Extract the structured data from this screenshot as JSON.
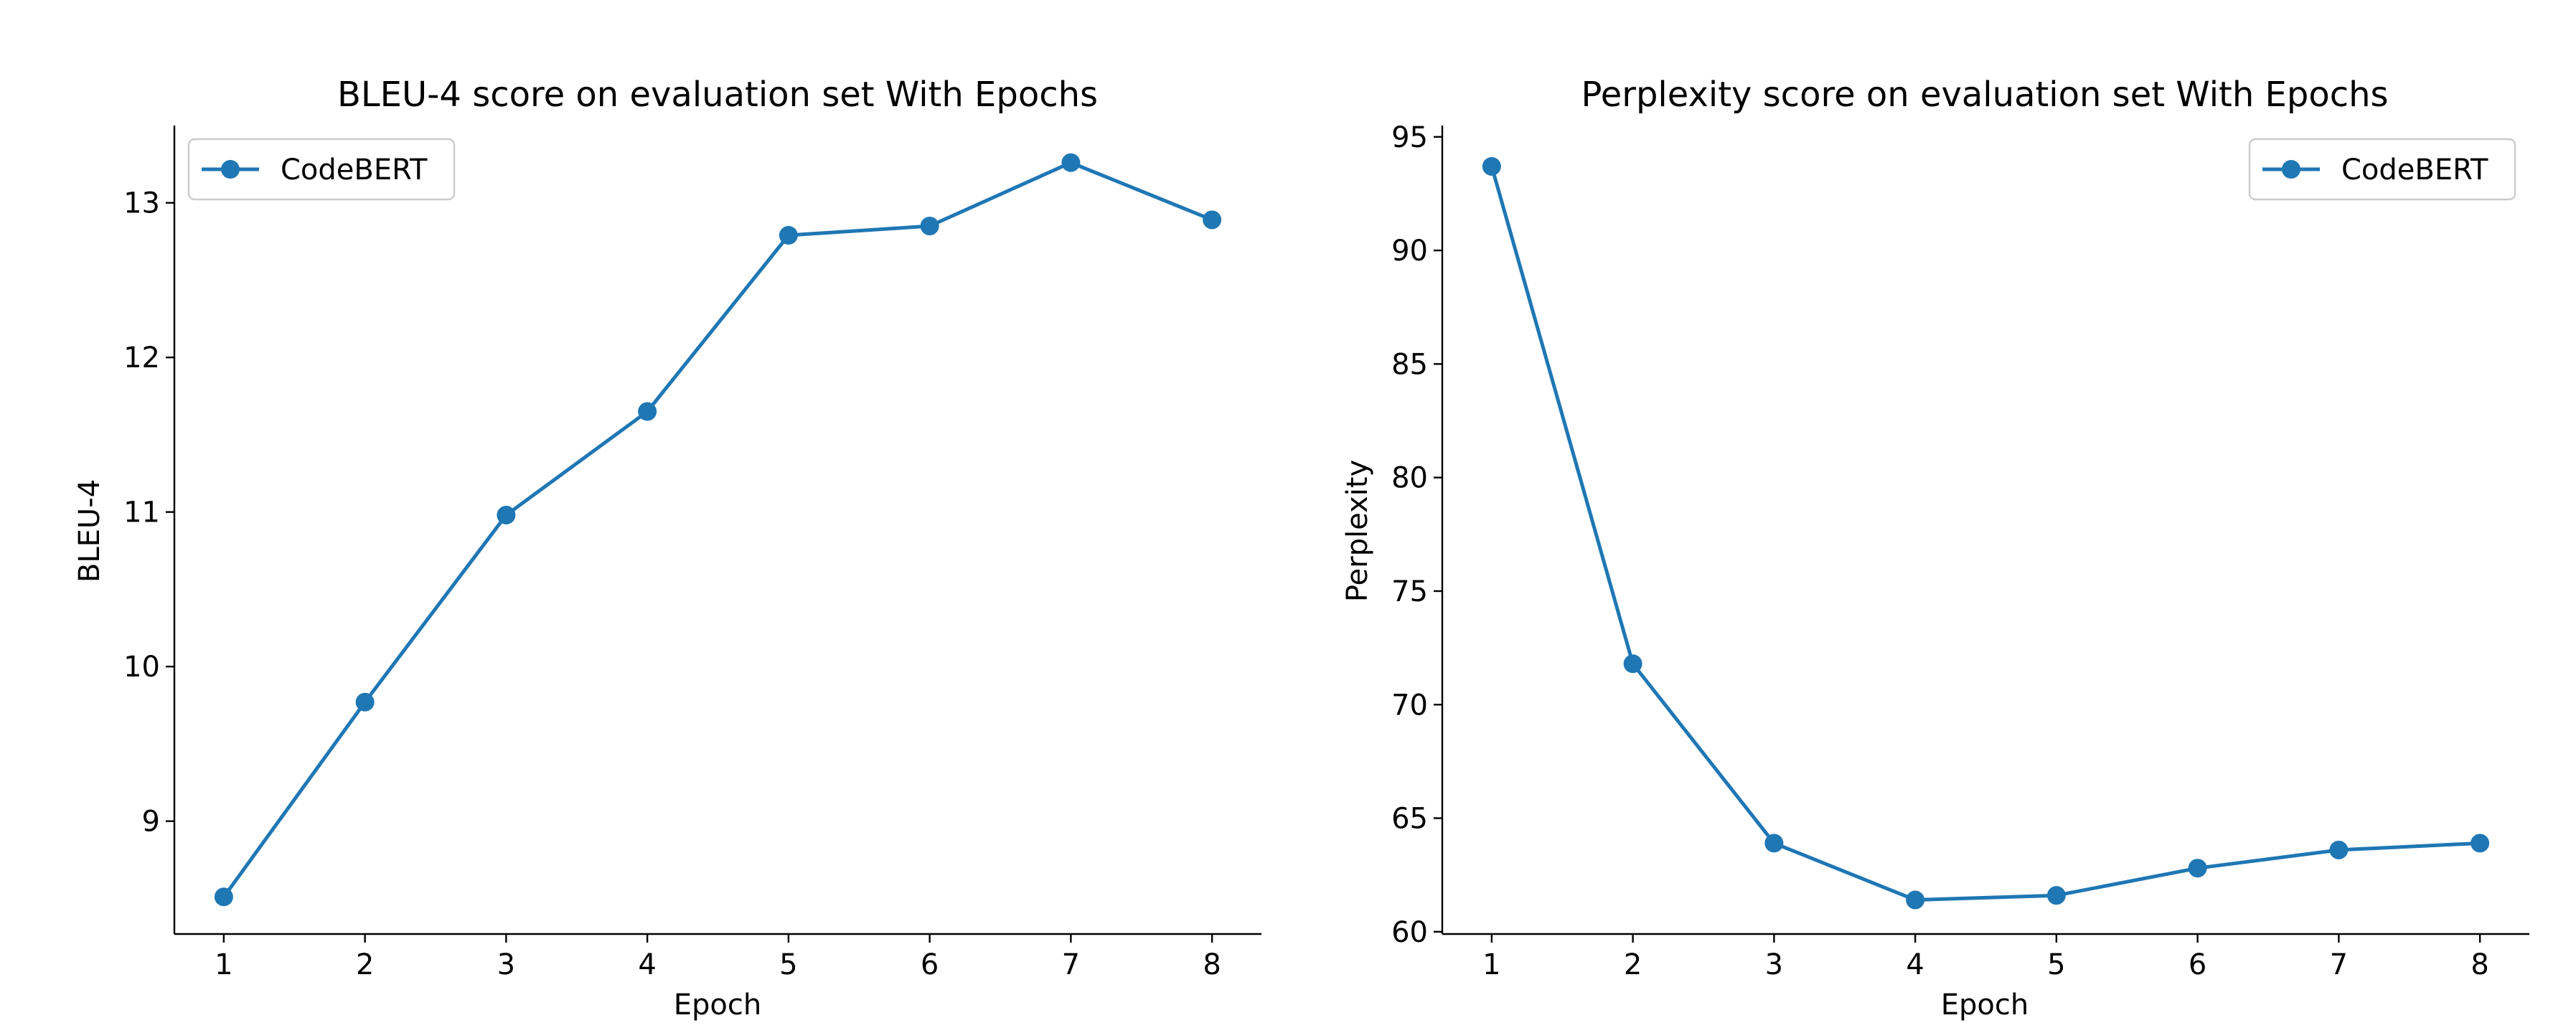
{
  "chart_data": [
    {
      "type": "line",
      "title": "BLEU-4 score on evaluation set With Epochs",
      "xlabel": "Epoch",
      "ylabel": "BLEU-4",
      "x": [
        1,
        2,
        3,
        4,
        5,
        6,
        7,
        8
      ],
      "xticks": [
        1,
        2,
        3,
        4,
        5,
        6,
        7,
        8
      ],
      "yticks": [
        9,
        10,
        11,
        12,
        13
      ],
      "xlim": [
        0.65,
        8.35
      ],
      "ylim": [
        8.27,
        13.5
      ],
      "series": [
        {
          "name": "CodeBERT",
          "color": "#1f77b4",
          "marker": "circle",
          "values": [
            8.51,
            9.77,
            10.98,
            11.65,
            12.79,
            12.85,
            13.26,
            12.89
          ]
        }
      ],
      "legend": "upper-left",
      "grid": false
    },
    {
      "type": "line",
      "title": "Perplexity score on evaluation set With Epochs",
      "xlabel": "Epoch",
      "ylabel": "Perplexity",
      "x": [
        1,
        2,
        3,
        4,
        5,
        6,
        7,
        8
      ],
      "xticks": [
        1,
        2,
        3,
        4,
        5,
        6,
        7,
        8
      ],
      "yticks": [
        60,
        65,
        70,
        75,
        80,
        85,
        90,
        95
      ],
      "xlim": [
        0.65,
        8.35
      ],
      "ylim": [
        59.9,
        95.5
      ],
      "series": [
        {
          "name": "CodeBERT",
          "color": "#1f77b4",
          "marker": "circle",
          "values": [
            93.7,
            71.8,
            63.9,
            61.4,
            61.6,
            62.8,
            63.6,
            63.9
          ]
        }
      ],
      "legend": "upper-right",
      "grid": false
    }
  ]
}
